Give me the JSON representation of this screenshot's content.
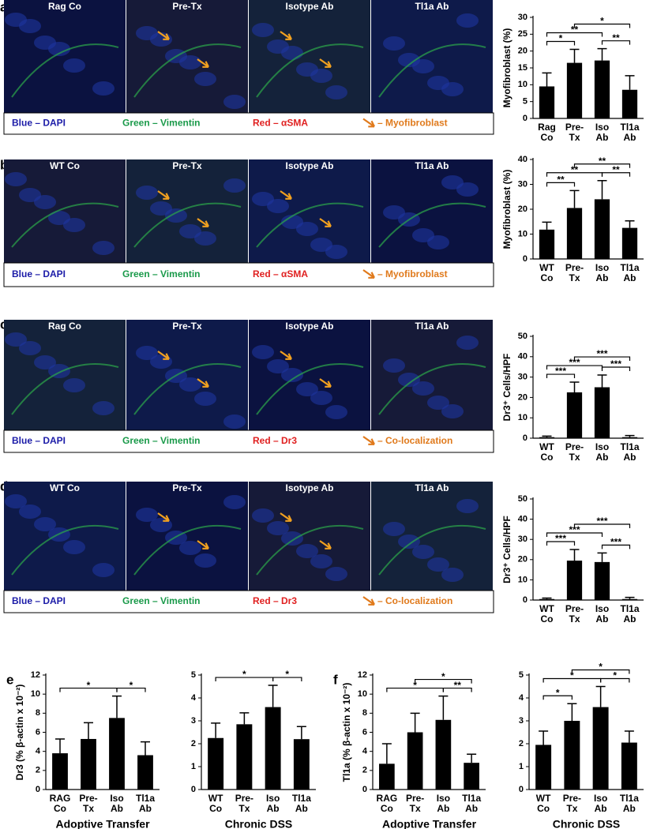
{
  "panels": [
    {
      "letter": "a",
      "images": [
        "Rag Co",
        "Pre-Tx",
        "Isotype Ab",
        "Tl1a Ab"
      ],
      "legend": [
        {
          "label": "Blue – DAPI",
          "color": "#1c1ca8"
        },
        {
          "label": "Green – Vimentin",
          "color": "#1a9a4a"
        },
        {
          "label": "Red – αSMA",
          "color": "#e02020"
        },
        {
          "label": "– Myofibroblast",
          "color": "#e07a1c"
        }
      ]
    },
    {
      "letter": "b",
      "images": [
        "WT Co",
        "Pre-Tx",
        "Isotype Ab",
        "Tl1a Ab"
      ],
      "legend": [
        {
          "label": "Blue – DAPI",
          "color": "#1c1ca8"
        },
        {
          "label": "Green – Vimentin",
          "color": "#1a9a4a"
        },
        {
          "label": "Red – αSMA",
          "color": "#e02020"
        },
        {
          "label": "– Myofibroblast",
          "color": "#e07a1c"
        }
      ]
    },
    {
      "letter": "c",
      "images": [
        "Rag Co",
        "Pre-Tx",
        "Isotype Ab",
        "Tl1a Ab"
      ],
      "legend": [
        {
          "label": "Blue – DAPI",
          "color": "#1c1ca8"
        },
        {
          "label": "Green – Vimentin",
          "color": "#1a9a4a"
        },
        {
          "label": "Red – Dr3",
          "color": "#e02020"
        },
        {
          "label": "– Co-localization",
          "color": "#e07a1c"
        }
      ]
    },
    {
      "letter": "d",
      "images": [
        "WT Co",
        "Pre-Tx",
        "Isotype Ab",
        "Tl1a Ab"
      ],
      "legend": [
        {
          "label": "Blue – DAPI",
          "color": "#1c1ca8"
        },
        {
          "label": "Green – Vimentin",
          "color": "#1a9a4a"
        },
        {
          "label": "Red – Dr3",
          "color": "#e02020"
        },
        {
          "label": "– Co-localization",
          "color": "#e07a1c"
        }
      ]
    },
    {
      "letter": "e"
    },
    {
      "letter": "f"
    }
  ],
  "chart_data": [
    {
      "type": "bar",
      "ylabel": "Myofibroblast (%)",
      "categories": [
        [
          "Rag",
          "Co"
        ],
        [
          "Pre-",
          "Tx"
        ],
        [
          "Iso",
          "Ab"
        ],
        [
          "Tl1a",
          "Ab"
        ]
      ],
      "values": [
        9.5,
        16.5,
        17.2,
        8.5
      ],
      "errors": [
        4,
        4,
        3.5,
        4.2
      ],
      "color": "#000000",
      "ylim": [
        0,
        30
      ],
      "yticks": [
        0,
        5,
        10,
        15,
        20,
        25,
        30
      ],
      "brackets": [
        {
          "between": [
            0,
            1
          ],
          "label": "*"
        },
        {
          "between": [
            0,
            2
          ],
          "label": "**"
        },
        {
          "between": [
            2,
            3
          ],
          "label": "**"
        },
        {
          "between": [
            1,
            3
          ],
          "label": "*"
        }
      ]
    },
    {
      "type": "bar",
      "ylabel": "Myofibroblast (%)",
      "categories": [
        [
          "WT",
          "Co"
        ],
        [
          "Pre-",
          "Tx"
        ],
        [
          "Iso",
          "Ab"
        ],
        [
          "Tl1a",
          "Ab"
        ]
      ],
      "values": [
        11.8,
        20.5,
        24,
        12.5
      ],
      "errors": [
        3,
        7,
        7.5,
        2.8
      ],
      "color": "#000000",
      "ylim": [
        0,
        40
      ],
      "yticks": [
        0,
        10,
        20,
        30,
        40
      ],
      "brackets": [
        {
          "between": [
            0,
            1
          ],
          "label": "**"
        },
        {
          "between": [
            0,
            2
          ],
          "label": "**"
        },
        {
          "between": [
            2,
            3
          ],
          "label": "**"
        },
        {
          "between": [
            1,
            3
          ],
          "label": "**"
        }
      ]
    },
    {
      "type": "bar",
      "ylabel": "Dr3⁺ Cells/HPF",
      "categories": [
        [
          "WT",
          "Co"
        ],
        [
          "Pre-",
          "Tx"
        ],
        [
          "Iso",
          "Ab"
        ],
        [
          "Tl1a",
          "Ab"
        ]
      ],
      "values": [
        0.5,
        22.5,
        25,
        0.5
      ],
      "errors": [
        0.5,
        5,
        6,
        0.8
      ],
      "color": "#000000",
      "ylim": [
        0,
        50
      ],
      "yticks": [
        0,
        10,
        20,
        30,
        40,
        50
      ],
      "brackets": [
        {
          "between": [
            0,
            1
          ],
          "label": "***"
        },
        {
          "between": [
            0,
            2
          ],
          "label": "***"
        },
        {
          "between": [
            2,
            3
          ],
          "label": "***"
        },
        {
          "between": [
            1,
            3
          ],
          "label": "***"
        }
      ]
    },
    {
      "type": "bar",
      "ylabel": "Dr3⁺ Cells/HPF",
      "categories": [
        [
          "WT",
          "Co"
        ],
        [
          "Pre-",
          "Tx"
        ],
        [
          "Iso",
          "Ab"
        ],
        [
          "Tl1a",
          "Ab"
        ]
      ],
      "values": [
        0.5,
        19.5,
        18.8,
        0.5
      ],
      "errors": [
        0.5,
        5.5,
        4.5,
        0.8
      ],
      "color": "#000000",
      "ylim": [
        0,
        50
      ],
      "yticks": [
        0,
        10,
        20,
        30,
        40,
        50
      ],
      "brackets": [
        {
          "between": [
            0,
            1
          ],
          "label": "***"
        },
        {
          "between": [
            0,
            2
          ],
          "label": "***"
        },
        {
          "between": [
            2,
            3
          ],
          "label": "***"
        },
        {
          "between": [
            1,
            3
          ],
          "label": "***"
        }
      ]
    },
    {
      "type": "bar",
      "title": "Adoptive Transfer",
      "ylabel": "Dr3 (% β-actin x 10⁻²)",
      "categories": [
        [
          "RAG",
          "Co"
        ],
        [
          "Pre-",
          "Tx"
        ],
        [
          "Iso",
          "Ab"
        ],
        [
          "Tl1a",
          "Ab"
        ]
      ],
      "values": [
        3.8,
        5.3,
        7.5,
        3.6
      ],
      "errors": [
        1.5,
        1.7,
        2.3,
        1.4
      ],
      "color": "#000000",
      "ylim": [
        0,
        12
      ],
      "yticks": [
        0,
        2,
        4,
        6,
        8,
        10,
        12
      ],
      "brackets": [
        {
          "between": [
            0,
            2
          ],
          "label": "*"
        },
        {
          "between": [
            2,
            3
          ],
          "label": "*"
        }
      ]
    },
    {
      "type": "bar",
      "title": "Chronic DSS",
      "categories": [
        [
          "WT",
          "Co"
        ],
        [
          "Pre-",
          "Tx"
        ],
        [
          "Iso",
          "Ab"
        ],
        [
          "Tl1a",
          "Ab"
        ]
      ],
      "values": [
        2.25,
        2.85,
        3.6,
        2.2
      ],
      "errors": [
        0.65,
        0.5,
        0.95,
        0.55
      ],
      "color": "#000000",
      "ylim": [
        0,
        5
      ],
      "yticks": [
        0,
        1,
        2,
        3,
        4,
        5
      ],
      "brackets": [
        {
          "between": [
            0,
            2
          ],
          "label": "*"
        },
        {
          "between": [
            2,
            3
          ],
          "label": "*"
        }
      ]
    },
    {
      "type": "bar",
      "title": "Adoptive Transfer",
      "ylabel": "Tl1a (% β-actin x 10⁻²)",
      "categories": [
        [
          "RAG",
          "Co"
        ],
        [
          "Pre-",
          "Tx"
        ],
        [
          "Iso",
          "Ab"
        ],
        [
          "Tl1a",
          "Ab"
        ]
      ],
      "values": [
        2.7,
        6,
        7.3,
        2.8
      ],
      "errors": [
        2.1,
        2,
        2.5,
        0.9
      ],
      "color": "#000000",
      "ylim": [
        0,
        12
      ],
      "yticks": [
        0,
        2,
        4,
        6,
        8,
        10,
        12
      ],
      "brackets": [
        {
          "between": [
            0,
            2
          ],
          "label": "*"
        },
        {
          "between": [
            2,
            3
          ],
          "label": "**"
        },
        {
          "between": [
            1,
            3
          ],
          "label": "*"
        }
      ]
    },
    {
      "type": "bar",
      "title": "Chronic DSS",
      "categories": [
        [
          "WT",
          "Co"
        ],
        [
          "Pre-",
          "Tx"
        ],
        [
          "Iso",
          "Ab"
        ],
        [
          "Tl1a",
          "Ab"
        ]
      ],
      "values": [
        1.95,
        3,
        3.6,
        2.05
      ],
      "errors": [
        0.6,
        0.75,
        0.9,
        0.5
      ],
      "color": "#000000",
      "ylim": [
        0,
        5
      ],
      "yticks": [
        0,
        1,
        2,
        3,
        4,
        5
      ],
      "brackets": [
        {
          "between": [
            0,
            1
          ],
          "label": "*"
        },
        {
          "between": [
            0,
            2
          ],
          "label": "*"
        },
        {
          "between": [
            2,
            3
          ],
          "label": "*"
        },
        {
          "between": [
            1,
            3
          ],
          "label": "*"
        }
      ]
    }
  ]
}
